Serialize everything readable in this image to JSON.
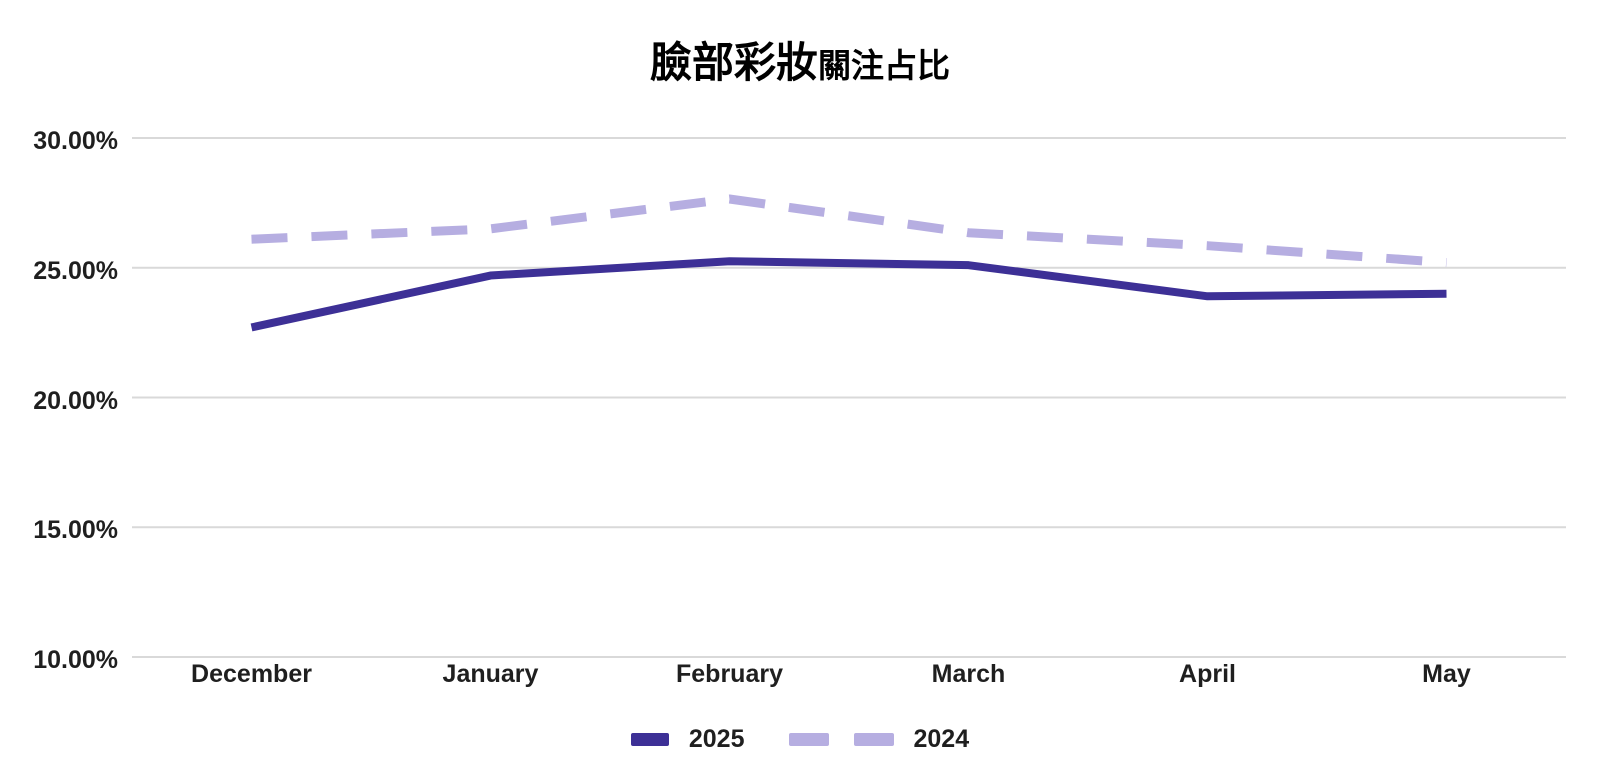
{
  "title": {
    "primary": "臉部彩妝",
    "secondary": "關注占比"
  },
  "colors": {
    "series_2025": "#3d3096",
    "series_2024": "#b6aee1",
    "gridline": "#d9d9d9",
    "label_text": "#1f1f1f",
    "title_text": "#000000"
  },
  "chart_data": {
    "type": "line",
    "title": "臉部彩妝關注占比",
    "categories": [
      "December",
      "January",
      "February",
      "March",
      "April",
      "May"
    ],
    "series": [
      {
        "name": "2025",
        "line_style": "solid",
        "color": "#3d3096",
        "values": [
          22.7,
          24.7,
          25.25,
          25.1,
          23.9,
          24.0
        ]
      },
      {
        "name": "2024",
        "line_style": "dashed",
        "color": "#b6aee1",
        "values": [
          26.1,
          26.5,
          27.65,
          26.35,
          25.85,
          25.2
        ]
      }
    ],
    "xlabel": "",
    "ylabel": "",
    "y_ticks": [
      {
        "label": "30.00%",
        "value": 30
      },
      {
        "label": "25.00%",
        "value": 25
      },
      {
        "label": "20.00%",
        "value": 20
      },
      {
        "label": "15.00%",
        "value": 15
      },
      {
        "label": "10.00%",
        "value": 10
      }
    ],
    "ylim": [
      10,
      30
    ],
    "grid": "horizontal",
    "legend_position": "bottom",
    "legend_labels": [
      "2025",
      "2024"
    ]
  }
}
